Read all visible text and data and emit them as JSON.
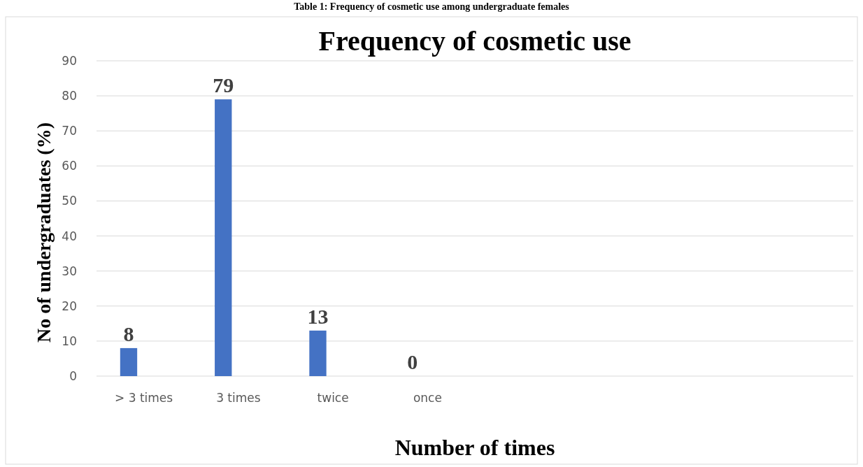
{
  "chart_data": {
    "type": "bar",
    "title": "Frequency of cosmetic use",
    "xlabel": "Number of times",
    "ylabel": "No of undergraduates (%)",
    "annotations": [
      "Table 1: Frequency of cosmetic use among undergraduate females"
    ],
    "categories": [
      "> 3 times",
      "3 times",
      "twice",
      "once",
      null,
      null,
      null,
      null
    ],
    "values": [
      8,
      79,
      13,
      0,
      null,
      null,
      null,
      null
    ],
    "color": "#4472c4",
    "ylim": [
      0,
      90
    ],
    "yticks": [
      0,
      10,
      20,
      30,
      40,
      50,
      60,
      70,
      80,
      90
    ],
    "grid": "y",
    "data_labels": true
  }
}
